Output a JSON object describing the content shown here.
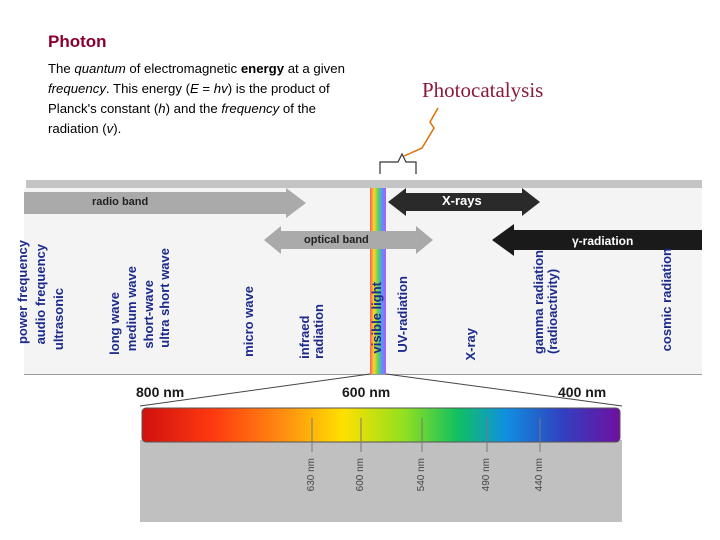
{
  "photon": {
    "title": "Photon",
    "description_parts": [
      {
        "t": "The ",
        "s": "n"
      },
      {
        "t": "quantum",
        "s": "i"
      },
      {
        "t": " of electromagnetic ",
        "s": "n"
      },
      {
        "t": "energy",
        "s": "b"
      },
      {
        "t": " at a given ",
        "s": "n"
      },
      {
        "t": "frequency",
        "s": "i"
      },
      {
        "t": ". This energy (",
        "s": "n"
      },
      {
        "t": "E",
        "s": "i"
      },
      {
        "t": " = ",
        "s": "n"
      },
      {
        "t": "hv",
        "s": "i"
      },
      {
        "t": ") is the product of Planck's constant (",
        "s": "n"
      },
      {
        "t": "h",
        "s": "i"
      },
      {
        "t": ") and the ",
        "s": "n"
      },
      {
        "t": "frequency",
        "s": "i"
      },
      {
        "t": " of the radiation (",
        "s": "n"
      },
      {
        "t": "v",
        "s": "i"
      },
      {
        "t": ").",
        "s": "n"
      }
    ]
  },
  "annotation": {
    "label": "Photocatalysis"
  },
  "bands": {
    "radio": "radio band",
    "xrays": "X-rays",
    "optical": "optical band",
    "gamma": "γ-radiation"
  },
  "labels": {
    "power": "power frequency",
    "audio": "audio frequency",
    "ultrasonic": "ultrasonic",
    "long": "long wave",
    "medium": "medium wave",
    "short": "short-wave",
    "ultrashort": "ultra short wave",
    "micro": "micro wave",
    "infrared": "infraed\nradiation",
    "visible": "visible light",
    "uv": "UV-radiation",
    "xray": "X-ray",
    "gamma": "gamma radiation\n(radioactivity)",
    "cosmic": "cosmic radiation"
  },
  "spectrum": {
    "nm_800": "800 nm",
    "nm_600": "600 nm",
    "nm_400": "400 nm",
    "ticks": [
      "630 nm",
      "600 nm",
      "540 nm",
      "490 nm",
      "440 nm"
    ]
  },
  "colors": {
    "title": "#8b0030",
    "photocatalysis": "#8b1a3a",
    "labels": "#1b2a8c",
    "radio_arrow": "#aaaaaa",
    "dark_arrow": "#2a2a2a"
  }
}
